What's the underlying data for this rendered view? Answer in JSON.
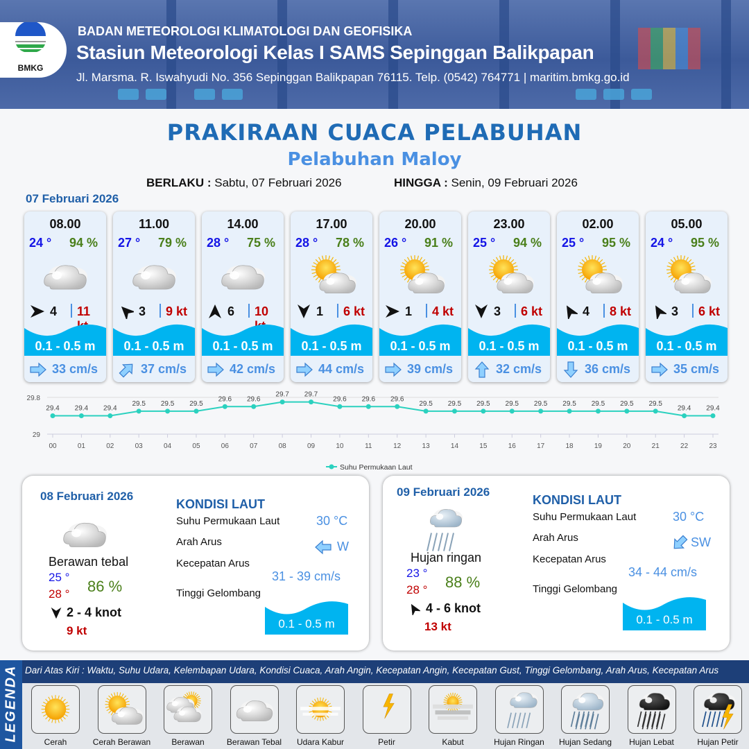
{
  "header": {
    "agency": "BADAN METEOROLOGI KLIMATOLOGI DAN GEOFISIKA",
    "station": "Stasiun Meteorologi Kelas I SAMS Sepinggan Balikpapan",
    "address": "Jl. Marsma. R. Iswahyudi No. 356 Sepinggan Balikpapan 76115. Telp. (0542) 764771 | maritim.bmkg.go.id",
    "logo_text": "BMKG"
  },
  "title": "PRAKIRAAN CUACA PELABUHAN",
  "subtitle": "Pelabuhan Maloy",
  "validity": {
    "from_label": "BERLAKU :",
    "from_value": "Sabtu, 07 Februari 2026",
    "to_label": "HINGGA :",
    "to_value": "Senin, 09 Februari 2026"
  },
  "day1": {
    "date": "07 Februari 2026",
    "forecasts": [
      {
        "time": "08.00",
        "temp": "24 °",
        "hum": "94 %",
        "weather": "berawan-tebal",
        "wind_dir_deg": 90,
        "wind": "4",
        "gust": "11 kt",
        "wave": "0.1 - 0.5 m",
        "current_dir_deg": 90,
        "current": "33 cm/s"
      },
      {
        "time": "11.00",
        "temp": "27 °",
        "hum": "79 %",
        "weather": "berawan-tebal",
        "wind_dir_deg": -45,
        "wind": "3",
        "gust": "9 kt",
        "wave": "0.1 - 0.5 m",
        "current_dir_deg": 45,
        "current": "37 cm/s"
      },
      {
        "time": "14.00",
        "temp": "28 °",
        "hum": "75 %",
        "weather": "berawan-tebal",
        "wind_dir_deg": 0,
        "wind": "6",
        "gust": "10 kt",
        "wave": "0.1 - 0.5 m",
        "current_dir_deg": 90,
        "current": "42 cm/s"
      },
      {
        "time": "17.00",
        "temp": "28 °",
        "hum": "78 %",
        "weather": "cerah-berawan",
        "wind_dir_deg": 180,
        "wind": "1",
        "gust": "6 kt",
        "wave": "0.1 - 0.5 m",
        "current_dir_deg": 90,
        "current": "44 cm/s"
      },
      {
        "time": "20.00",
        "temp": "26 °",
        "hum": "91 %",
        "weather": "cerah-berawan",
        "wind_dir_deg": 90,
        "wind": "1",
        "gust": "4 kt",
        "wave": "0.1 - 0.5 m",
        "current_dir_deg": 90,
        "current": "39 cm/s"
      },
      {
        "time": "23.00",
        "temp": "25 °",
        "hum": "94 %",
        "weather": "cerah-berawan",
        "wind_dir_deg": 180,
        "wind": "3",
        "gust": "6 kt",
        "wave": "0.1 - 0.5 m",
        "current_dir_deg": 0,
        "current": "32 cm/s"
      },
      {
        "time": "02.00",
        "temp": "25 °",
        "hum": "95 %",
        "weather": "cerah-berawan",
        "wind_dir_deg": -30,
        "wind": "4",
        "gust": "8 kt",
        "wave": "0.1 - 0.5 m",
        "current_dir_deg": 180,
        "current": "36 cm/s"
      },
      {
        "time": "05.00",
        "temp": "24 °",
        "hum": "95 %",
        "weather": "cerah-berawan",
        "wind_dir_deg": -30,
        "wind": "3",
        "gust": "6 kt",
        "wave": "0.1 - 0.5 m",
        "current_dir_deg": 90,
        "current": "35 cm/s"
      }
    ]
  },
  "chart_data": {
    "type": "line",
    "categories": [
      "00",
      "01",
      "02",
      "03",
      "04",
      "05",
      "06",
      "07",
      "08",
      "09",
      "10",
      "11",
      "12",
      "13",
      "14",
      "15",
      "16",
      "17",
      "18",
      "19",
      "20",
      "21",
      "22",
      "23"
    ],
    "series": [
      {
        "name": "Suhu Permukaan Laut",
        "values": [
          29.4,
          29.4,
          29.4,
          29.5,
          29.5,
          29.5,
          29.6,
          29.6,
          29.7,
          29.7,
          29.6,
          29.6,
          29.6,
          29.5,
          29.5,
          29.5,
          29.5,
          29.5,
          29.5,
          29.5,
          29.5,
          29.5,
          29.4,
          29.4
        ],
        "color": "#2bd1bf"
      }
    ],
    "yticks": [
      "29",
      "29.8"
    ],
    "ylim": [
      29,
      29.8
    ],
    "legend": "bottom"
  },
  "days": [
    {
      "date": "08 Februari 2026",
      "weather": "berawan-tebal",
      "weather_label": "Berawan tebal",
      "tmin": "25 °",
      "tmax": "28 °",
      "hum": "86 %",
      "wind_dir_deg": 180,
      "wind": "2  - 4 knot",
      "gust": "9 kt",
      "sea": {
        "title": "KONDISI LAUT",
        "sst_label": "Suhu Permukaan Laut",
        "sst": "30 °C",
        "dir_label": "Arah Arus",
        "dir": "W",
        "dir_deg": -90,
        "speed_label": "Kecepatan Arus",
        "speed": "31  - 39 cm/s",
        "wave_label": "Tinggi Gelombang",
        "wave": "0.1 - 0.5 m"
      }
    },
    {
      "date": "09 Februari 2026",
      "weather": "hujan-ringan",
      "weather_label": "Hujan ringan",
      "tmin": "23 °",
      "tmax": "28 °",
      "hum": "88 %",
      "wind_dir_deg": -30,
      "wind": "4  - 6 knot",
      "gust": "13 kt",
      "sea": {
        "title": "KONDISI LAUT",
        "sst_label": "Suhu Permukaan Laut",
        "sst": "30 °C",
        "dir_label": "Arah Arus",
        "dir": "SW",
        "dir_deg": -135,
        "speed_label": "Kecepatan Arus",
        "speed": "34  - 44 cm/s",
        "wave_label": "Tinggi Gelombang",
        "wave": "0.1 - 0.5 m"
      }
    }
  ],
  "legend": {
    "title": "LEGENDA",
    "description": "Dari Atas Kiri : Waktu, Suhu Udara, Kelembapan Udara, Kondisi Cuaca, Arah Angin, Kecepatan Angin, Kecepatan Gust, Tinggi Gelombang, Arah Arus, Kecepatan Arus",
    "items": [
      {
        "icon": "cerah",
        "label": "Cerah"
      },
      {
        "icon": "cerah-berawan",
        "label": "Cerah Berawan"
      },
      {
        "icon": "berawan",
        "label": "Berawan"
      },
      {
        "icon": "berawan-tebal",
        "label": "Berawan Tebal"
      },
      {
        "icon": "udara-kabur",
        "label": "Udara Kabur"
      },
      {
        "icon": "petir",
        "label": "Petir"
      },
      {
        "icon": "kabut",
        "label": "Kabut"
      },
      {
        "icon": "hujan-ringan",
        "label": "Hujan Ringan"
      },
      {
        "icon": "hujan-sedang",
        "label": "Hujan Sedang"
      },
      {
        "icon": "hujan-lebat",
        "label": "Hujan Lebat"
      },
      {
        "icon": "hujan-petir",
        "label": "Hujan Petir"
      }
    ]
  },
  "colors": {
    "brand": "#1f6bb5",
    "temp": "#1414e6",
    "humidity": "#4a7f1a",
    "gust": "#c00000",
    "wave": "#00b4f0",
    "current": "#4a90e2",
    "line": "#2bd1bf"
  }
}
